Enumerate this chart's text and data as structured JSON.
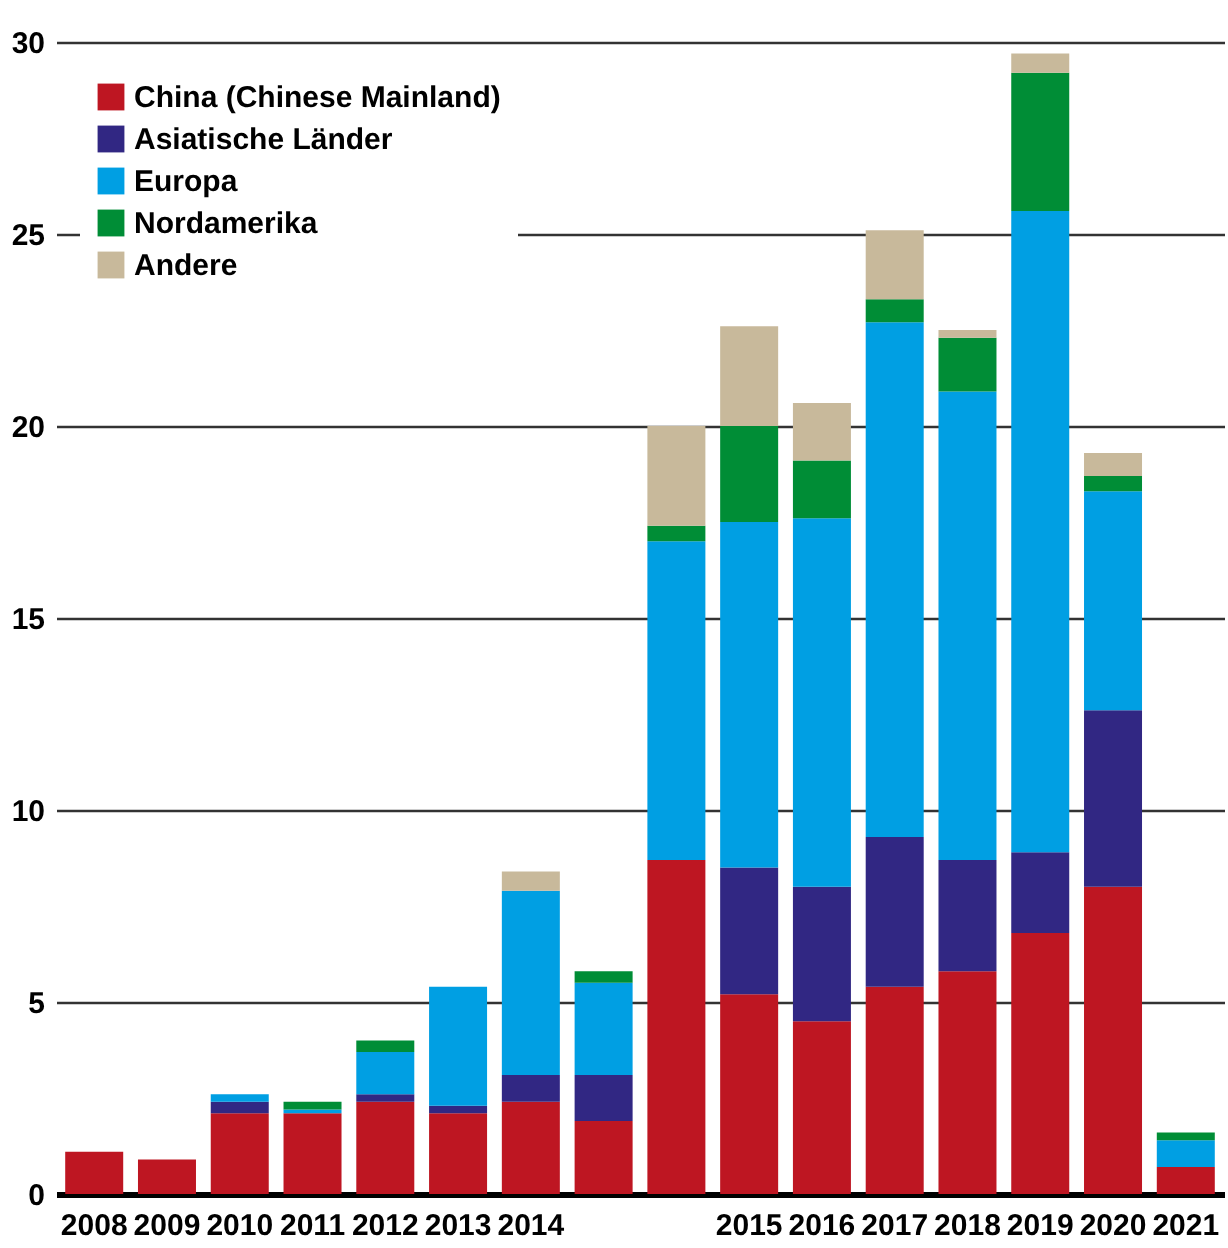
{
  "chart_data": {
    "type": "bar",
    "stacked": true,
    "categories": [
      "2008",
      "2009",
      "2010",
      "2011",
      "2012",
      "2013",
      "2014",
      null,
      null,
      "2015",
      "2016",
      "2017",
      "2018",
      "2019",
      "2020",
      "2021"
    ],
    "series": [
      {
        "name": "China (Chinese Mainland)",
        "color": "#be1622",
        "values": [
          1.1,
          0.9,
          2.1,
          2.1,
          2.4,
          2.1,
          2.4,
          1.9,
          8.7,
          5.2,
          4.5,
          5.4,
          5.8,
          6.8,
          8.0,
          0.7
        ]
      },
      {
        "name": "Asiatische Länder",
        "color": "#312783",
        "values": [
          null,
          null,
          0.3,
          null,
          0.2,
          0.2,
          0.7,
          1.2,
          null,
          3.3,
          3.5,
          3.9,
          2.9,
          2.1,
          4.6,
          null
        ]
      },
      {
        "name": "Europa",
        "color": "#009fe3",
        "values": [
          null,
          null,
          0.2,
          0.1,
          1.1,
          3.1,
          4.8,
          2.4,
          8.3,
          9.0,
          9.6,
          13.4,
          12.2,
          16.7,
          5.7,
          0.7
        ]
      },
      {
        "name": "Nordamerika",
        "color": "#008d36",
        "values": [
          null,
          null,
          null,
          0.2,
          0.3,
          null,
          null,
          0.3,
          0.4,
          2.5,
          1.5,
          0.6,
          1.4,
          3.6,
          0.4,
          0.2
        ]
      },
      {
        "name": "Andere",
        "color": "#c8b99b",
        "values": [
          null,
          null,
          null,
          null,
          null,
          null,
          0.5,
          null,
          2.6,
          2.6,
          1.5,
          1.8,
          0.2,
          0.5,
          0.6,
          null
        ]
      }
    ],
    "ylim": [
      0,
      30
    ],
    "yticks": [
      0,
      5,
      10,
      15,
      20,
      25,
      30
    ],
    "grid": "y",
    "legend": "top left"
  }
}
